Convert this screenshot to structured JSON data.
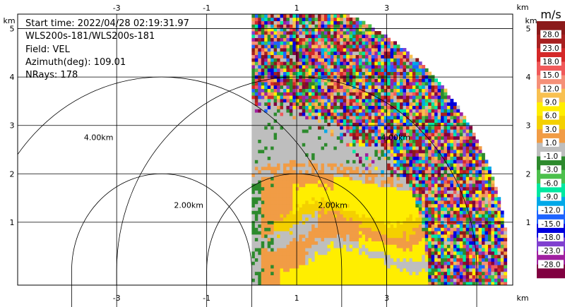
{
  "chart_data": {
    "type": "heatmap",
    "plot_kind": "PPI radar velocity sector",
    "info": [
      "Start time: 2022/04/28 02:19:31.975",
      "WLS200s-181/WLS200s-181",
      "Field: VEL",
      "Azimuth(deg): 109.01",
      "NRays: 178"
    ],
    "x_unit": "km",
    "y_unit": "km",
    "xlim": [
      -5.2,
      5.8
    ],
    "ylim": [
      -0.3,
      5.3
    ],
    "x_ticks": [
      -3,
      -1,
      1,
      3
    ],
    "y_ticks": [
      1,
      2,
      3,
      4,
      5
    ],
    "grid": true,
    "range_rings": [
      {
        "label": "2.00km",
        "radius_km": 2.0
      },
      {
        "label": "4.00km",
        "radius_km": 4.0
      },
      {
        "label": "2.00km",
        "radius_km": 2.0
      },
      {
        "label": "4.00km",
        "radius_km": 4.0
      }
    ],
    "data_sector": {
      "x_start_km": 0.0,
      "max_range_km": 5.7,
      "azimuth_range_deg": [
        0,
        90
      ]
    },
    "colorbar": {
      "unit": "m/s",
      "levels": [
        "28.0",
        "23.0",
        "18.0",
        "15.0",
        "12.0",
        "9.0",
        "6.0",
        "3.0",
        "1.0",
        "-1.0",
        "-3.0",
        "-6.0",
        "-9.0",
        "-12.0",
        "-15.0",
        "-18.0",
        "-23.0",
        "-28.0"
      ],
      "colors": [
        "#8b1a1a",
        "#a82020",
        "#d42828",
        "#f05a5a",
        "#f59078",
        "#f8c050",
        "#ffee00",
        "#f4d000",
        "#f19c45",
        "#bebebe",
        "#2d8a2d",
        "#4cc04c",
        "#00e8a0",
        "#00a8e8",
        "#1e64ff",
        "#0000dd",
        "#8040d0",
        "#a020a0",
        "#800040"
      ]
    }
  }
}
